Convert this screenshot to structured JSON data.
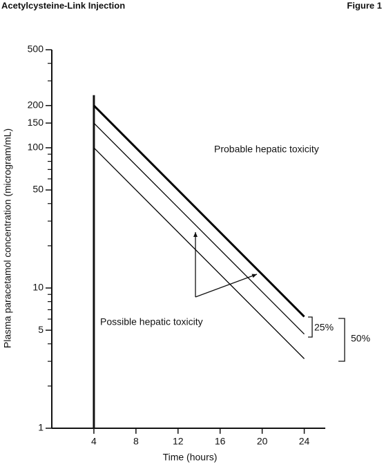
{
  "header": {
    "title": "Acetylcysteine-Link Injection",
    "figure": "Figure 1"
  },
  "chart_data": {
    "type": "line",
    "y_label": "Plasma paracetamol concentration (microgram/mL)",
    "x_label": "Time (hours)",
    "log_y": true,
    "xlim": [
      0,
      26
    ],
    "xticks": [
      4,
      8,
      12,
      16,
      20,
      24
    ],
    "ylim": [
      1,
      500
    ],
    "yticks": [
      1,
      5,
      10,
      50,
      100,
      150,
      200,
      500
    ],
    "yminorticks": [
      2,
      3,
      4,
      6,
      7,
      8,
      9,
      20,
      30,
      40,
      60,
      70,
      80,
      90,
      300,
      400
    ],
    "series": [
      {
        "color": "#000000",
        "line_width": 3,
        "x": [
          4,
          24
        ],
        "values": [
          200,
          6.25
        ]
      },
      {
        "color": "#000000",
        "line_width": 1.3,
        "x": [
          4,
          24
        ],
        "values": [
          150,
          4.69
        ]
      },
      {
        "color": "#000000",
        "line_width": 1.3,
        "x": [
          4,
          24
        ],
        "values": [
          100,
          3.13
        ]
      }
    ],
    "annotations": [
      "Probable hepatic toxicity",
      "Possible hepatic toxicity",
      "25%",
      "50%"
    ]
  }
}
